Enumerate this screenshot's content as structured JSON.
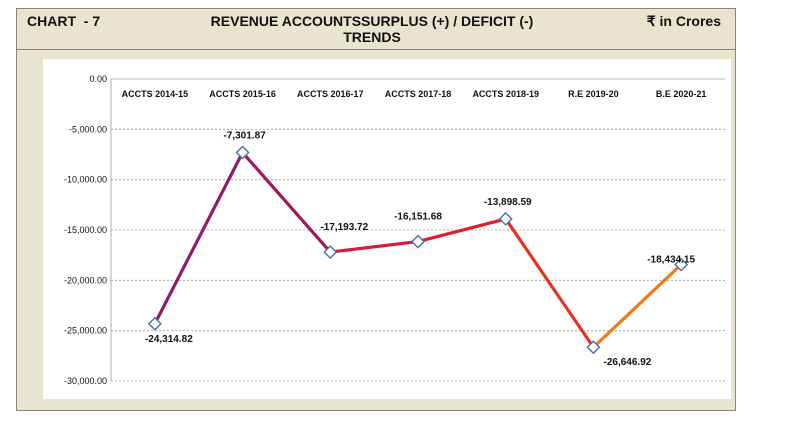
{
  "header": {
    "chart_no": "CHART  - 7",
    "title_line1": "REVENUE ACCOUNTSSURPLUS (+) / DEFICIT (-)",
    "title_line2": "TRENDS",
    "unit": "₹ in Crores"
  },
  "chart_data": {
    "type": "line",
    "title": "REVENUE ACCOUNTSSURPLUS (+) / DEFICIT (-) TRENDS",
    "categories": [
      "ACCTS 2014-15",
      "ACCTS 2015-16",
      "ACCTS 2016-17",
      "ACCTS 2017-18",
      "ACCTS 2018-19",
      "R.E 2019-20",
      "B.E 2020-21"
    ],
    "values": [
      -24314.82,
      -7301.87,
      -17193.72,
      -16151.68,
      -13898.59,
      -26646.92,
      -18434.15
    ],
    "data_labels": [
      "-24,314.82",
      "-7,301.87",
      "-17,193.72",
      "-16,151.68",
      "-13,898.59",
      "-26,646.92",
      "-18,434.15"
    ],
    "ylim": [
      -30000,
      0
    ],
    "yticks": [
      0,
      -5000,
      -10000,
      -15000,
      -20000,
      -25000,
      -30000
    ],
    "ytick_labels": [
      "0.00",
      "-5,000.00",
      "-10,000.00",
      "-15,000.00",
      "-20,000.00",
      "-25,000.00",
      "-30,000.00"
    ],
    "x_axis_position": "top",
    "grid": true,
    "legend": "none",
    "segment_colors": [
      "#8e1b6e",
      "#a3165e",
      "#d61c3a",
      "#e01d28",
      "#e3331f",
      "#f07a1a"
    ],
    "marker_color": "#ffffff",
    "marker_stroke": "#4a6ea8"
  }
}
